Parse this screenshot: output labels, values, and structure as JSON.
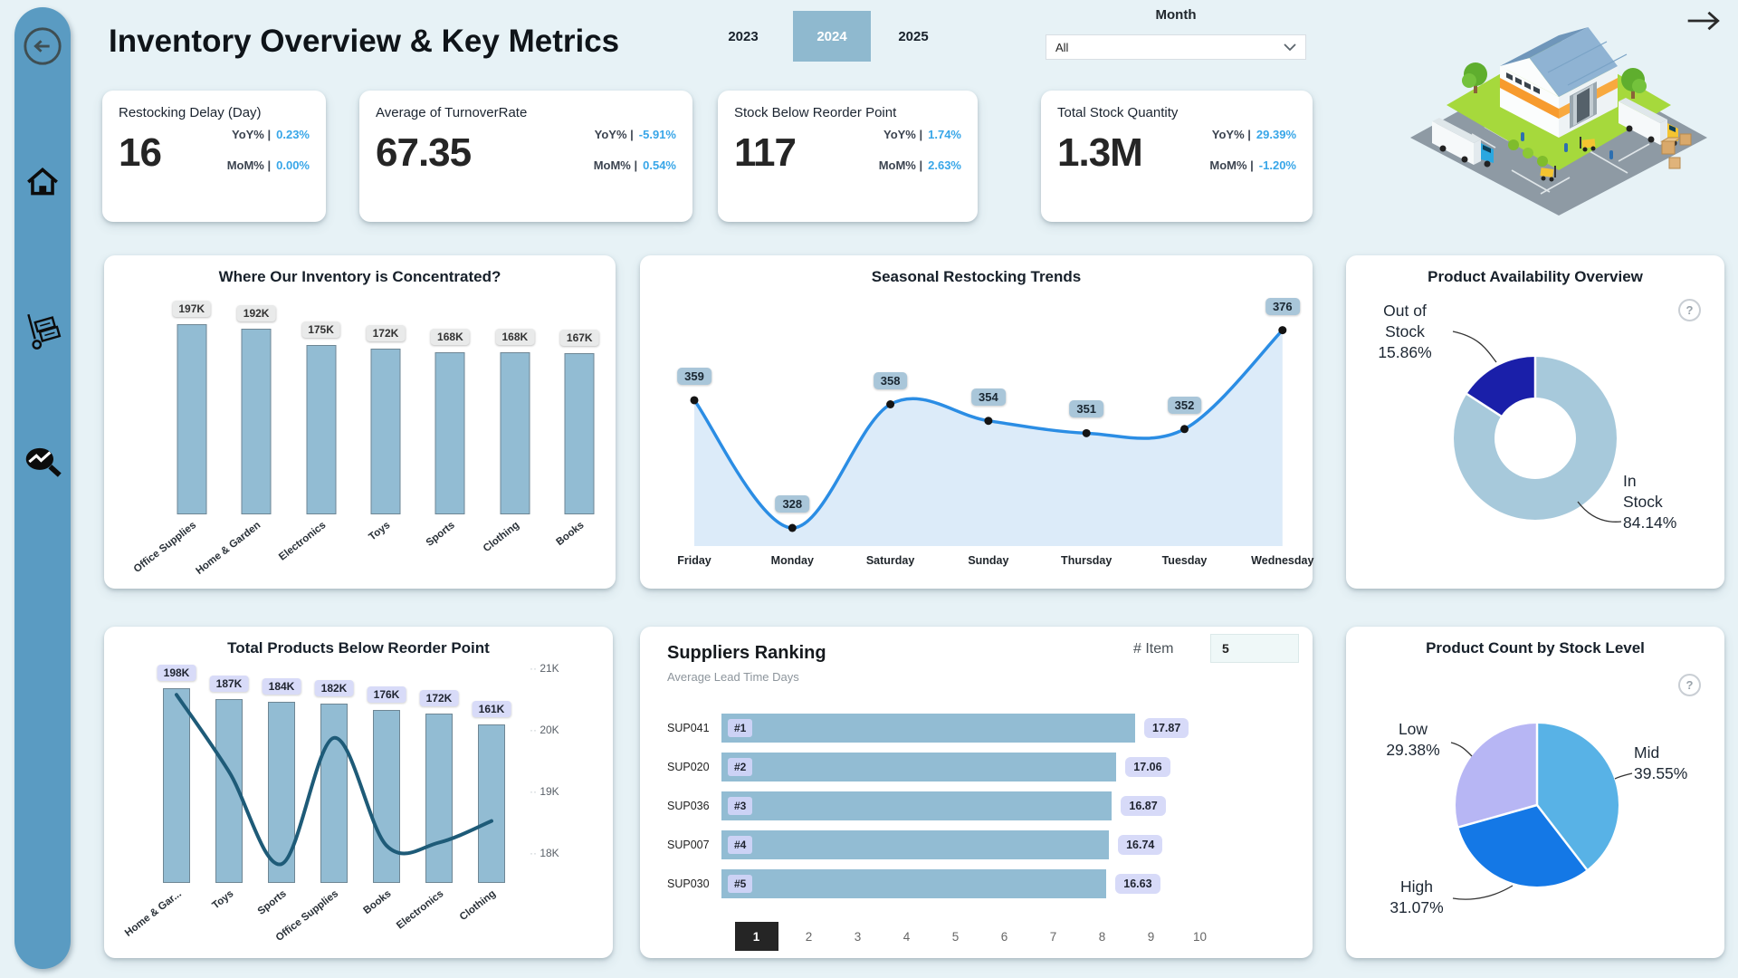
{
  "header": {
    "title": "Inventory Overview & Key Metrics",
    "years": [
      "2023",
      "2024",
      "2025"
    ],
    "selected_year": "2024",
    "month_label": "Month",
    "month_value": "All"
  },
  "icons": {
    "help": "?"
  },
  "theme": {
    "page_bg": "#e7f2f6",
    "sidebar": "#5a9bc2",
    "card_bg": "#ffffff",
    "kpi_accent": "#38a6e8",
    "bar_fill": "#92bcd3",
    "selected_year_bg": "#8fb9cf",
    "line_blue": "#2b8de4",
    "line_teal": "#1e5b78",
    "donut_light": "#a7c9db",
    "donut_navy": "#1a1fa9",
    "pie_mid": "#58b2e6",
    "pie_high": "#1478e6",
    "pie_low": "#b7b6f4",
    "pagination_selected_bg": "#252525"
  },
  "kpis": [
    {
      "title": "Restocking Delay (Day)",
      "value": "16",
      "yoy_label": "YoY% |",
      "yoy": "0.23%",
      "mom_label": "MoM% |",
      "mom": "0.00%"
    },
    {
      "title": "Average of TurnoverRate",
      "value": "67.35",
      "yoy_label": "YoY% |",
      "yoy": "-5.91%",
      "mom_label": "MoM% |",
      "mom": "0.54%"
    },
    {
      "title": "Stock Below Reorder Point",
      "value": "117",
      "yoy_label": "YoY% |",
      "yoy": "1.74%",
      "mom_label": "MoM% |",
      "mom": "2.63%"
    },
    {
      "title": "Total Stock Quantity",
      "value": "1.3M",
      "yoy_label": "YoY% |",
      "yoy": "29.39%",
      "mom_label": "MoM% |",
      "mom": "-1.20%"
    }
  ],
  "chart_data": [
    {
      "type": "bar",
      "title": "Where Our Inventory is Concentrated?",
      "categories": [
        "Office Supplies",
        "Home & Garden",
        "Electronics",
        "Toys",
        "Sports",
        "Clothing",
        "Books"
      ],
      "values": [
        197000,
        192000,
        175000,
        172000,
        168000,
        168000,
        167000
      ],
      "value_labels": [
        "197K",
        "192K",
        "175K",
        "172K",
        "168K",
        "168K",
        "167K"
      ],
      "ylim": [
        0,
        197000
      ]
    },
    {
      "type": "line",
      "title": "Seasonal Restocking Trends",
      "categories": [
        "Friday",
        "Monday",
        "Saturday",
        "Sunday",
        "Thursday",
        "Tuesday",
        "Wednesday"
      ],
      "values": [
        359,
        328,
        358,
        354,
        351,
        352,
        376
      ],
      "line_color": "#2b8de4",
      "area": true
    },
    {
      "type": "donut",
      "title": "Product Availability Overview",
      "slices": [
        {
          "label": "In Stock",
          "pct": 84.14,
          "color": "#a7c9db",
          "display": "In\nStock\n84.14%"
        },
        {
          "label": "Out of Stock",
          "pct": 15.86,
          "color": "#1a1fa9",
          "display": "Out of\nStock\n15.86%"
        }
      ]
    },
    {
      "type": "bar+line",
      "title": "Total Products Below Reorder Point",
      "categories": [
        "Home & Gar...",
        "Toys",
        "Sports",
        "Office Supplies",
        "Books",
        "Electronics",
        "Clothing"
      ],
      "bar_values": [
        198000,
        187000,
        184000,
        182000,
        176000,
        172000,
        161000
      ],
      "bar_labels": [
        "198K",
        "187K",
        "184K",
        "182K",
        "176K",
        "172K",
        "161K"
      ],
      "line_values": [
        20600,
        19350,
        17850,
        19900,
        18150,
        18200,
        18550
      ],
      "y2_ticks": [
        "21K",
        "20K",
        "19K",
        "18K"
      ],
      "y2lim": [
        18000,
        21000
      ],
      "line_color": "#1e5b78"
    },
    {
      "type": "hbar",
      "title": "Suppliers Ranking",
      "subtitle": "Average Lead Time Days",
      "item_label": "# Item",
      "item_value": "5",
      "categories": [
        "SUP041",
        "SUP020",
        "SUP036",
        "SUP007",
        "SUP030"
      ],
      "ranks": [
        "#1",
        "#2",
        "#3",
        "#4",
        "#5"
      ],
      "values": [
        17.87,
        17.06,
        16.87,
        16.74,
        16.63
      ],
      "pagination": [
        "1",
        "2",
        "3",
        "4",
        "5",
        "6",
        "7",
        "8",
        "9",
        "10"
      ],
      "selected_page": "1"
    },
    {
      "type": "pie",
      "title": "Product Count by Stock Level",
      "slices": [
        {
          "label": "Mid",
          "pct": 39.55,
          "color": "#58b2e6",
          "display": "Mid\n39.55%"
        },
        {
          "label": "High",
          "pct": 31.07,
          "color": "#1478e6",
          "display": "High\n31.07%"
        },
        {
          "label": "Low",
          "pct": 29.38,
          "color": "#b7b6f4",
          "display": "Low\n29.38%"
        }
      ]
    }
  ]
}
